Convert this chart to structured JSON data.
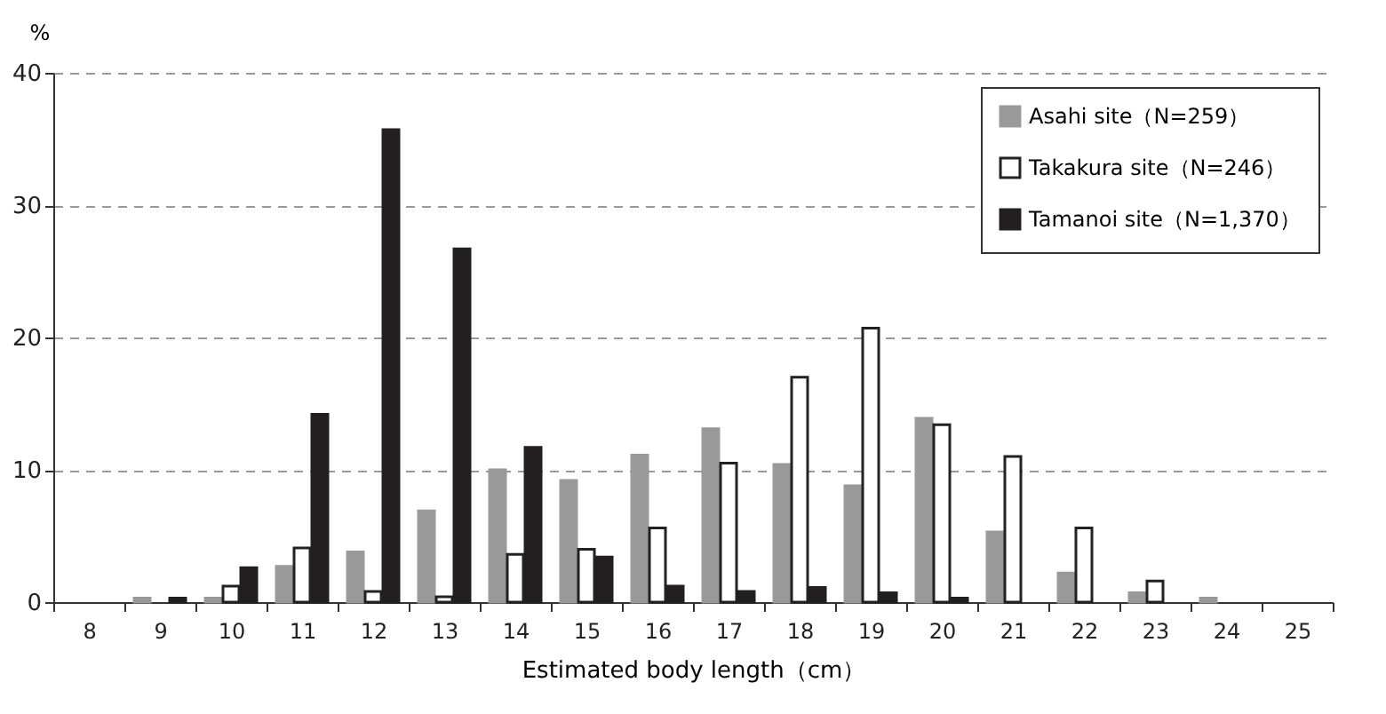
{
  "chart_data": {
    "type": "bar",
    "xlabel": "Estimated body length（cm）",
    "ylabel": "%",
    "categories": [
      "8",
      "9",
      "10",
      "11",
      "12",
      "13",
      "14",
      "15",
      "16",
      "17",
      "18",
      "19",
      "20",
      "21",
      "22",
      "23",
      "24",
      "25"
    ],
    "series": [
      {
        "name": "Asahi site（N=259）",
        "color": "#999999",
        "values": [
          0,
          0.3,
          0.3,
          2.7,
          3.8,
          6.9,
          10,
          9.2,
          11.1,
          13.1,
          10.4,
          8.8,
          13.9,
          5.3,
          2.2,
          0.7,
          0.3,
          0
        ]
      },
      {
        "name": "Takakura site（N=246）",
        "color": "#ffffff",
        "values": [
          0,
          0,
          1.2,
          4.1,
          0.8,
          0.4,
          3.6,
          4.0,
          5.6,
          10.5,
          17.0,
          20.7,
          13.4,
          11.0,
          5.6,
          1.6,
          0,
          0
        ]
      },
      {
        "name": "Tamanoi site（N=1,370）",
        "color": "#231f20",
        "values": [
          0,
          0.3,
          2.6,
          14.2,
          35.7,
          26.7,
          11.7,
          3.4,
          1.2,
          0.8,
          1.1,
          0.7,
          0.3,
          0,
          0,
          0,
          0,
          0
        ]
      }
    ],
    "ylim": [
      0,
      40
    ],
    "yticks": [
      0,
      10,
      20,
      30,
      40
    ],
    "grid": "y",
    "legend": "top right"
  }
}
